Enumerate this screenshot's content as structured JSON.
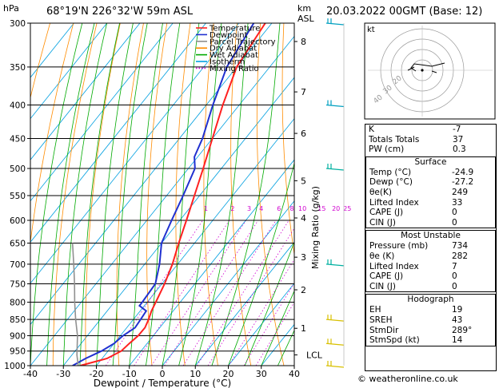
{
  "header": {
    "hpa_label": "hPa",
    "location": "68°19'N  226°32'W  59m  ASL",
    "km_label": "km",
    "asl_label": "ASL",
    "datetime": "20.03.2022  00GMT  (Base: 12)"
  },
  "legend": [
    {
      "label": "Temperature",
      "color": "#ff2020",
      "style": "solid"
    },
    {
      "label": "Dewpoint",
      "color": "#2030d0",
      "style": "solid"
    },
    {
      "label": "Parcel Trajectory",
      "color": "#909090",
      "style": "solid"
    },
    {
      "label": "Dry Adiabat",
      "color": "#ff8c00",
      "style": "solid"
    },
    {
      "label": "Wet Adiabat",
      "color": "#00aa00",
      "style": "solid"
    },
    {
      "label": "Isotherm",
      "color": "#00a0e0",
      "style": "solid"
    },
    {
      "label": "Mixing Ratio",
      "color": "#d000d0",
      "style": "dotted"
    }
  ],
  "chart_data": {
    "type": "line",
    "x_axis": {
      "label": "Dewpoint / Temperature (°C)",
      "ticks": [
        -40,
        -30,
        -20,
        -10,
        0,
        10,
        20,
        30,
        40
      ],
      "range": [
        -40,
        40
      ]
    },
    "y_axis": {
      "label": "hPa",
      "scale": "log",
      "ticks": [
        300,
        350,
        400,
        450,
        500,
        550,
        600,
        650,
        700,
        750,
        800,
        850,
        900,
        950,
        1000
      ],
      "range": [
        300,
        1000
      ]
    },
    "km_axis": {
      "ticks": [
        {
          "km": "1",
          "p": 877
        },
        {
          "km": "2",
          "p": 766
        },
        {
          "km": "3",
          "p": 683
        },
        {
          "km": "4",
          "p": 595
        },
        {
          "km": "5",
          "p": 522
        },
        {
          "km": "6",
          "p": 442
        },
        {
          "km": "7",
          "p": 382
        },
        {
          "km": "8",
          "p": 320
        }
      ],
      "lcl_label": "LCL",
      "lcl_p": 963
    },
    "mixing_ratio_axis_label": "Mixing Ratio (g/kg)",
    "mixing_ratio_labels": [
      "1",
      "2",
      "3",
      "4",
      "6",
      "8",
      "10",
      "15",
      "20",
      "25"
    ],
    "mixing_ratio_label_p": 590,
    "series": [
      {
        "name": "Temperature",
        "color": "#ff2020",
        "points": [
          {
            "p": 1000,
            "t": -24.9
          },
          {
            "p": 975,
            "t": -18.5
          },
          {
            "p": 950,
            "t": -16.0
          },
          {
            "p": 925,
            "t": -15.4
          },
          {
            "p": 900,
            "t": -14.6
          },
          {
            "p": 875,
            "t": -14.5
          },
          {
            "p": 850,
            "t": -15.4
          },
          {
            "p": 825,
            "t": -16.6
          },
          {
            "p": 800,
            "t": -17.4
          },
          {
            "p": 750,
            "t": -19.2
          },
          {
            "p": 700,
            "t": -21.6
          },
          {
            "p": 650,
            "t": -24.8
          },
          {
            "p": 600,
            "t": -28.0
          },
          {
            "p": 550,
            "t": -31.6
          },
          {
            "p": 500,
            "t": -35.5
          },
          {
            "p": 450,
            "t": -40.0
          },
          {
            "p": 400,
            "t": -45.0
          },
          {
            "p": 350,
            "t": -50.0
          },
          {
            "p": 300,
            "t": -52.0
          }
        ]
      },
      {
        "name": "Dewpoint",
        "color": "#2030d0",
        "points": [
          {
            "p": 1000,
            "t": -27.2
          },
          {
            "p": 975,
            "t": -25.0
          },
          {
            "p": 950,
            "t": -22.0
          },
          {
            "p": 925,
            "t": -20.0
          },
          {
            "p": 900,
            "t": -19.2
          },
          {
            "p": 875,
            "t": -17.5
          },
          {
            "p": 850,
            "t": -17.8
          },
          {
            "p": 825,
            "t": -18.2
          },
          {
            "p": 810,
            "t": -21.5
          },
          {
            "p": 800,
            "t": -21.5
          },
          {
            "p": 750,
            "t": -22.0
          },
          {
            "p": 700,
            "t": -25.5
          },
          {
            "p": 650,
            "t": -30.0
          },
          {
            "p": 600,
            "t": -32.5
          },
          {
            "p": 550,
            "t": -35.0
          },
          {
            "p": 500,
            "t": -38.0
          },
          {
            "p": 480,
            "t": -41.0
          },
          {
            "p": 450,
            "t": -43.0
          },
          {
            "p": 400,
            "t": -48.0
          },
          {
            "p": 350,
            "t": -53.0
          },
          {
            "p": 300,
            "t": -55.5
          }
        ]
      },
      {
        "name": "Parcel Trajectory",
        "color": "#909090",
        "points": [
          {
            "p": 1000,
            "t": -25.5
          },
          {
            "p": 963,
            "t": -28.5
          },
          {
            "p": 900,
            "t": -33.0
          },
          {
            "p": 850,
            "t": -37.5
          },
          {
            "p": 800,
            "t": -42.0
          },
          {
            "p": 750,
            "t": -46.5
          },
          {
            "p": 700,
            "t": -51.5
          },
          {
            "p": 650,
            "t": -57.0
          }
        ]
      }
    ],
    "wind_barbs_p": [
      300,
      400,
      500,
      700,
      850,
      925,
      1000
    ]
  },
  "hodograph": {
    "label": "kt",
    "ring_labels": [
      "40",
      "30",
      "20"
    ]
  },
  "indices": [
    {
      "label": "K",
      "value": "-7"
    },
    {
      "label": "Totals Totals",
      "value": "37"
    },
    {
      "label": "PW (cm)",
      "value": "0.3"
    }
  ],
  "surface": {
    "title": "Surface",
    "rows": [
      {
        "label": "Temp (°C)",
        "value": "-24.9"
      },
      {
        "label": "Dewp (°C)",
        "value": "-27.2"
      },
      {
        "label": "θe(K)",
        "value": "249"
      },
      {
        "label": "Lifted Index",
        "value": "33"
      },
      {
        "label": "CAPE (J)",
        "value": "0"
      },
      {
        "label": "CIN (J)",
        "value": "0"
      }
    ]
  },
  "most_unstable": {
    "title": "Most Unstable",
    "rows": [
      {
        "label": "Pressure (mb)",
        "value": "734"
      },
      {
        "label": "θe (K)",
        "value": "282"
      },
      {
        "label": "Lifted Index",
        "value": "7"
      },
      {
        "label": "CAPE (J)",
        "value": "0"
      },
      {
        "label": "CIN (J)",
        "value": "0"
      }
    ]
  },
  "hodograph_table": {
    "title": "Hodograph",
    "rows": [
      {
        "label": "EH",
        "value": "19"
      },
      {
        "label": "SREH",
        "value": "43"
      },
      {
        "label": "StmDir",
        "value": "289°"
      },
      {
        "label": "StmSpd (kt)",
        "value": "14"
      }
    ]
  },
  "footer": {
    "text": "© weatheronline.co.uk"
  }
}
